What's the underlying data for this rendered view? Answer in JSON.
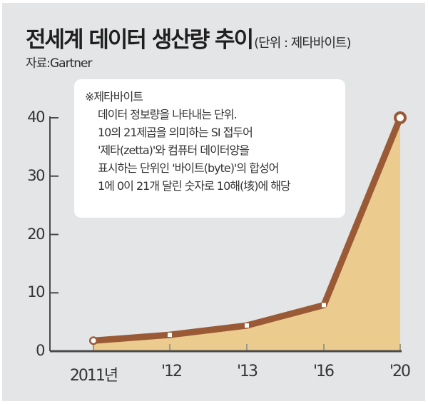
{
  "header": {
    "title": "전세계 데이터 생산량 추이",
    "unit": "(단위 : 제타바이트)",
    "source": "자료:Gartner"
  },
  "note": {
    "title": "※제타바이트",
    "lines": [
      "데이터 정보량을 나타내는 단위.",
      "10의 21제곱을 의미하는 SI 접두어",
      "'제타(zetta)'와 컴퓨터 데이터양을",
      "표시하는 단위인 '바이트(byte)'의 합성어",
      "1에 0이 21개 달린 숫자로  10해(垓)에 해당"
    ]
  },
  "axes": {
    "y_ticks": [
      "0",
      "10",
      "20",
      "30",
      "40"
    ],
    "x_ticks": [
      "2011년",
      "'12",
      "'13",
      "'16",
      "'20"
    ]
  },
  "colors": {
    "background": "#e3e5e7",
    "line": "#9a5a36",
    "fill": "#eccb8e",
    "marker": "#ffffff",
    "axis": "#4a4a4a"
  },
  "chart_data": {
    "type": "area",
    "title": "전세계 데이터 생산량 추이",
    "subtitle": "(단위 : 제타바이트)",
    "source": "자료:Gartner",
    "categories": [
      "2011년",
      "'12",
      "'13",
      "'16",
      "'20"
    ],
    "series": [
      {
        "name": "데이터 생산량 (제타바이트)",
        "values": [
          1.8,
          2.8,
          4.4,
          7.9,
          40
        ]
      }
    ],
    "xlabel": "",
    "ylabel": "제타바이트",
    "ylim": [
      0,
      40
    ],
    "yticks": [
      0,
      10,
      20,
      30,
      40
    ],
    "grid": false,
    "legend": "none",
    "annotation": "※제타바이트: 데이터 정보량을 나타내는 단위. 10의 21제곱을 의미하는 SI 접두어 '제타(zetta)'와 컴퓨터 데이터양을 표시하는 단위인 '바이트(byte)'의 합성어. 1에 0이 21개 달린 숫자로 10해(垓)에 해당"
  }
}
